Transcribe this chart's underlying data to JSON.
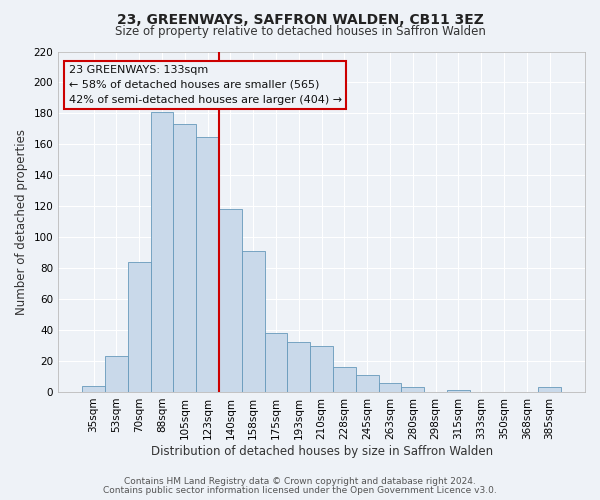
{
  "title": "23, GREENWAYS, SAFFRON WALDEN, CB11 3EZ",
  "subtitle": "Size of property relative to detached houses in Saffron Walden",
  "xlabel": "Distribution of detached houses by size in Saffron Walden",
  "ylabel": "Number of detached properties",
  "categories": [
    "35sqm",
    "53sqm",
    "70sqm",
    "88sqm",
    "105sqm",
    "123sqm",
    "140sqm",
    "158sqm",
    "175sqm",
    "193sqm",
    "210sqm",
    "228sqm",
    "245sqm",
    "263sqm",
    "280sqm",
    "298sqm",
    "315sqm",
    "333sqm",
    "350sqm",
    "368sqm",
    "385sqm"
  ],
  "values": [
    4,
    23,
    84,
    181,
    173,
    165,
    118,
    91,
    38,
    32,
    30,
    16,
    11,
    6,
    3,
    0,
    1,
    0,
    0,
    0,
    3
  ],
  "bar_color": "#c9d9ea",
  "bar_edge_color": "#6699bb",
  "vline_x_index": 6,
  "vline_color": "#cc0000",
  "ylim": [
    0,
    220
  ],
  "yticks": [
    0,
    20,
    40,
    60,
    80,
    100,
    120,
    140,
    160,
    180,
    200,
    220
  ],
  "annotation_box_text_line1": "23 GREENWAYS: 133sqm",
  "annotation_box_text_line2": "← 58% of detached houses are smaller (565)",
  "annotation_box_text_line3": "42% of semi-detached houses are larger (404) →",
  "annotation_box_color": "#cc0000",
  "footer_line1": "Contains HM Land Registry data © Crown copyright and database right 2024.",
  "footer_line2": "Contains public sector information licensed under the Open Government Licence v3.0.",
  "background_color": "#eef2f7",
  "grid_color": "#ffffff",
  "title_fontsize": 10,
  "subtitle_fontsize": 8.5,
  "axis_label_fontsize": 8.5,
  "tick_fontsize": 7.5,
  "footer_fontsize": 6.5,
  "annotation_fontsize": 8
}
